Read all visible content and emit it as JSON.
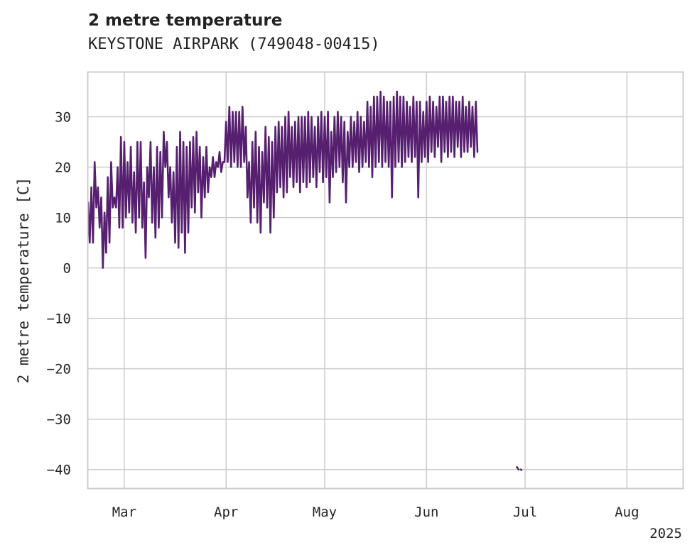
{
  "chart_data": {
    "type": "line",
    "title": "2 metre temperature",
    "subtitle": "KEYSTONE AIRPARK (749048-00415)",
    "ylabel": "2 metre temperature [C]",
    "xlabel": "",
    "year_label": "2025",
    "xlim": [
      "2025-02-18",
      "2025-08-18"
    ],
    "ylim": [
      -43.7,
      38.8
    ],
    "x_ticks": [
      {
        "date": "2025-03-01",
        "label": "Mar"
      },
      {
        "date": "2025-04-01",
        "label": "Apr"
      },
      {
        "date": "2025-05-01",
        "label": "May"
      },
      {
        "date": "2025-06-01",
        "label": "Jun"
      },
      {
        "date": "2025-07-01",
        "label": "Jul"
      },
      {
        "date": "2025-08-01",
        "label": "Aug"
      }
    ],
    "y_ticks": [
      30,
      20,
      10,
      0,
      -10,
      -20,
      -30,
      -40
    ],
    "grid": true,
    "line_color": "#561f6f",
    "series": [
      {
        "name": "",
        "points": [
          [
            "2025-02-18",
            13
          ],
          [
            "2025-02-18 12:00",
            5
          ],
          [
            "2025-02-19",
            16
          ],
          [
            "2025-02-19 12:00",
            5
          ],
          [
            "2025-02-20",
            21
          ],
          [
            "2025-02-20 12:00",
            12
          ],
          [
            "2025-02-21",
            16
          ],
          [
            "2025-02-21 12:00",
            8
          ],
          [
            "2025-02-22",
            14
          ],
          [
            "2025-02-22 12:00",
            0
          ],
          [
            "2025-02-23",
            11
          ],
          [
            "2025-02-23 12:00",
            3
          ],
          [
            "2025-02-24",
            18
          ],
          [
            "2025-02-24 12:00",
            5
          ],
          [
            "2025-02-25",
            21
          ],
          [
            "2025-02-25 12:00",
            12
          ],
          [
            "2025-02-26",
            14
          ],
          [
            "2025-02-26 12:00",
            12
          ],
          [
            "2025-02-27",
            20
          ],
          [
            "2025-02-27 12:00",
            8
          ],
          [
            "2025-02-28",
            26
          ],
          [
            "2025-02-28 12:00",
            8
          ],
          [
            "2025-03-01",
            25
          ],
          [
            "2025-03-01 12:00",
            10
          ],
          [
            "2025-03-02",
            21
          ],
          [
            "2025-03-02 12:00",
            11
          ],
          [
            "2025-03-03",
            24
          ],
          [
            "2025-03-03 12:00",
            9
          ],
          [
            "2025-03-04",
            19
          ],
          [
            "2025-03-04 12:00",
            7
          ],
          [
            "2025-03-05",
            25
          ],
          [
            "2025-03-05 12:00",
            10
          ],
          [
            "2025-03-06",
            25
          ],
          [
            "2025-03-06 12:00",
            8
          ],
          [
            "2025-03-07",
            17
          ],
          [
            "2025-03-07 12:00",
            2
          ],
          [
            "2025-03-08",
            20
          ],
          [
            "2025-03-08 12:00",
            14
          ],
          [
            "2025-03-09",
            25
          ],
          [
            "2025-03-09 12:00",
            9
          ],
          [
            "2025-03-10",
            20
          ],
          [
            "2025-03-10 12:00",
            6
          ],
          [
            "2025-03-11",
            24
          ],
          [
            "2025-03-11 12:00",
            8
          ],
          [
            "2025-03-12",
            23
          ],
          [
            "2025-03-12 12:00",
            10
          ],
          [
            "2025-03-13",
            27
          ],
          [
            "2025-03-13 12:00",
            20
          ],
          [
            "2025-03-14",
            25
          ],
          [
            "2025-03-14 12:00",
            14
          ],
          [
            "2025-03-15",
            20
          ],
          [
            "2025-03-15 12:00",
            9
          ],
          [
            "2025-03-16",
            19
          ],
          [
            "2025-03-16 12:00",
            5
          ],
          [
            "2025-03-17",
            24
          ],
          [
            "2025-03-17 12:00",
            4
          ],
          [
            "2025-03-18",
            27
          ],
          [
            "2025-03-18 12:00",
            7
          ],
          [
            "2025-03-19",
            25
          ],
          [
            "2025-03-19 12:00",
            3
          ],
          [
            "2025-03-20",
            24
          ],
          [
            "2025-03-20 12:00",
            7
          ],
          [
            "2025-03-21",
            25
          ],
          [
            "2025-03-21 12:00",
            12
          ],
          [
            "2025-03-22",
            26
          ],
          [
            "2025-03-22 12:00",
            11
          ],
          [
            "2025-03-23",
            27
          ],
          [
            "2025-03-23 12:00",
            15
          ],
          [
            "2025-03-24",
            24
          ],
          [
            "2025-03-24 12:00",
            10
          ],
          [
            "2025-03-25",
            22
          ],
          [
            "2025-03-25 12:00",
            14
          ],
          [
            "2025-03-26",
            24
          ],
          [
            "2025-03-26 12:00",
            15
          ],
          [
            "2025-03-27",
            20
          ],
          [
            "2025-03-27 12:00",
            18
          ],
          [
            "2025-03-28",
            22
          ],
          [
            "2025-03-28 12:00",
            18
          ],
          [
            "2025-03-29",
            21
          ],
          [
            "2025-03-29 12:00",
            20
          ],
          [
            "2025-03-30",
            23
          ],
          [
            "2025-03-30 12:00",
            19
          ],
          [
            "2025-03-31",
            21
          ],
          [
            "2025-03-31 12:00",
            21
          ],
          [
            "2025-04-01",
            29
          ],
          [
            "2025-04-01 12:00",
            21
          ],
          [
            "2025-04-02",
            32
          ],
          [
            "2025-04-02 12:00",
            20
          ],
          [
            "2025-04-03",
            31
          ],
          [
            "2025-04-03 12:00",
            21
          ],
          [
            "2025-04-04",
            31
          ],
          [
            "2025-04-04 12:00",
            20
          ],
          [
            "2025-04-05",
            31
          ],
          [
            "2025-04-05 12:00",
            20
          ],
          [
            "2025-04-06",
            32
          ],
          [
            "2025-04-06 12:00",
            21
          ],
          [
            "2025-04-07",
            28
          ],
          [
            "2025-04-07 12:00",
            14
          ],
          [
            "2025-04-08",
            21
          ],
          [
            "2025-04-08 12:00",
            9
          ],
          [
            "2025-04-09",
            25
          ],
          [
            "2025-04-09 12:00",
            12
          ],
          [
            "2025-04-10",
            27
          ],
          [
            "2025-04-10 12:00",
            9
          ],
          [
            "2025-04-11",
            24
          ],
          [
            "2025-04-11 12:00",
            7
          ],
          [
            "2025-04-12",
            23
          ],
          [
            "2025-04-12 12:00",
            13
          ],
          [
            "2025-04-13",
            28
          ],
          [
            "2025-04-13 12:00",
            12
          ],
          [
            "2025-04-14",
            26
          ],
          [
            "2025-04-14 12:00",
            7
          ],
          [
            "2025-04-15",
            25
          ],
          [
            "2025-04-15 12:00",
            10
          ],
          [
            "2025-04-16",
            28
          ],
          [
            "2025-04-16 12:00",
            15
          ],
          [
            "2025-04-17",
            29
          ],
          [
            "2025-04-17 12:00",
            16
          ],
          [
            "2025-04-18",
            28
          ],
          [
            "2025-04-18 12:00",
            14
          ],
          [
            "2025-04-19",
            30
          ],
          [
            "2025-04-19 12:00",
            15
          ],
          [
            "2025-04-20",
            31
          ],
          [
            "2025-04-20 12:00",
            18
          ],
          [
            "2025-04-21",
            28
          ],
          [
            "2025-04-21 12:00",
            16
          ],
          [
            "2025-04-22",
            29
          ],
          [
            "2025-04-22 12:00",
            17
          ],
          [
            "2025-04-23",
            30
          ],
          [
            "2025-04-23 12:00",
            15
          ],
          [
            "2025-04-24",
            30
          ],
          [
            "2025-04-24 12:00",
            17
          ],
          [
            "2025-04-25",
            30
          ],
          [
            "2025-04-25 12:00",
            16
          ],
          [
            "2025-04-26",
            31
          ],
          [
            "2025-04-26 12:00",
            17
          ],
          [
            "2025-04-27",
            30
          ],
          [
            "2025-04-27 12:00",
            18
          ],
          [
            "2025-04-28",
            28
          ],
          [
            "2025-04-28 12:00",
            16
          ],
          [
            "2025-04-29",
            30
          ],
          [
            "2025-04-29 12:00",
            19
          ],
          [
            "2025-04-30",
            31
          ],
          [
            "2025-04-30 12:00",
            17
          ],
          [
            "2025-05-01",
            30
          ],
          [
            "2025-05-01 12:00",
            18
          ],
          [
            "2025-05-02",
            31
          ],
          [
            "2025-05-02 12:00",
            13
          ],
          [
            "2025-05-03",
            27
          ],
          [
            "2025-05-03 12:00",
            18
          ],
          [
            "2025-05-04",
            30
          ],
          [
            "2025-05-04 12:00",
            19
          ],
          [
            "2025-05-05",
            31
          ],
          [
            "2025-05-05 12:00",
            20
          ],
          [
            "2025-05-06",
            30
          ],
          [
            "2025-05-06 12:00",
            17
          ],
          [
            "2025-05-07",
            29
          ],
          [
            "2025-05-07 12:00",
            13
          ],
          [
            "2025-05-08",
            27
          ],
          [
            "2025-05-08 12:00",
            20
          ],
          [
            "2025-05-09",
            30
          ],
          [
            "2025-05-09 12:00",
            20
          ],
          [
            "2025-05-10",
            29
          ],
          [
            "2025-05-10 12:00",
            21
          ],
          [
            "2025-05-11",
            31
          ],
          [
            "2025-05-11 12:00",
            19
          ],
          [
            "2025-05-12",
            30
          ],
          [
            "2025-05-12 12:00",
            20
          ],
          [
            "2025-05-13",
            29
          ],
          [
            "2025-05-13 12:00",
            21
          ],
          [
            "2025-05-14",
            33
          ],
          [
            "2025-05-14 12:00",
            20
          ],
          [
            "2025-05-15",
            32
          ],
          [
            "2025-05-15 12:00",
            18
          ],
          [
            "2025-05-16",
            34
          ],
          [
            "2025-05-16 12:00",
            20
          ],
          [
            "2025-05-17",
            34
          ],
          [
            "2025-05-17 12:00",
            21
          ],
          [
            "2025-05-18",
            35
          ],
          [
            "2025-05-18 12:00",
            20
          ],
          [
            "2025-05-19",
            34
          ],
          [
            "2025-05-19 12:00",
            21
          ],
          [
            "2025-05-20",
            33
          ],
          [
            "2025-05-20 12:00",
            20
          ],
          [
            "2025-05-21",
            33
          ],
          [
            "2025-05-21 12:00",
            14
          ],
          [
            "2025-05-22",
            34
          ],
          [
            "2025-05-22 12:00",
            20
          ],
          [
            "2025-05-23",
            35
          ],
          [
            "2025-05-23 12:00",
            21
          ],
          [
            "2025-05-24",
            34
          ],
          [
            "2025-05-24 12:00",
            20
          ],
          [
            "2025-05-25",
            34
          ],
          [
            "2025-05-25 12:00",
            21
          ],
          [
            "2025-05-26",
            33
          ],
          [
            "2025-05-26 12:00",
            22
          ],
          [
            "2025-05-27",
            32
          ],
          [
            "2025-05-27 12:00",
            21
          ],
          [
            "2025-05-28",
            34
          ],
          [
            "2025-05-28 12:00",
            22
          ],
          [
            "2025-05-29",
            33
          ],
          [
            "2025-05-29 12:00",
            14
          ],
          [
            "2025-05-30",
            33
          ],
          [
            "2025-05-30 12:00",
            21
          ],
          [
            "2025-05-31",
            31
          ],
          [
            "2025-05-31 12:00",
            22
          ],
          [
            "2025-06-01",
            33
          ],
          [
            "2025-06-01 12:00",
            21
          ],
          [
            "2025-06-02",
            34
          ],
          [
            "2025-06-02 12:00",
            23
          ],
          [
            "2025-06-03",
            33
          ],
          [
            "2025-06-03 12:00",
            22
          ],
          [
            "2025-06-04",
            32
          ],
          [
            "2025-06-04 12:00",
            24
          ],
          [
            "2025-06-05",
            34
          ],
          [
            "2025-06-05 12:00",
            21
          ],
          [
            "2025-06-06",
            34
          ],
          [
            "2025-06-06 12:00",
            23
          ],
          [
            "2025-06-07",
            33
          ],
          [
            "2025-06-07 12:00",
            22
          ],
          [
            "2025-06-08",
            34
          ],
          [
            "2025-06-08 12:00",
            23
          ],
          [
            "2025-06-09",
            34
          ],
          [
            "2025-06-09 12:00",
            22
          ],
          [
            "2025-06-10",
            33
          ],
          [
            "2025-06-10 12:00",
            24
          ],
          [
            "2025-06-11",
            33
          ],
          [
            "2025-06-11 12:00",
            22
          ],
          [
            "2025-06-12",
            34
          ],
          [
            "2025-06-12 12:00",
            23
          ],
          [
            "2025-06-13",
            32
          ],
          [
            "2025-06-13 12:00",
            23
          ],
          [
            "2025-06-14",
            33
          ],
          [
            "2025-06-14 12:00",
            24
          ],
          [
            "2025-06-15",
            32
          ],
          [
            "2025-06-15 12:00",
            22
          ],
          [
            "2025-06-16",
            33
          ],
          [
            "2025-06-16 12:00",
            23
          ]
        ]
      },
      {
        "name": "",
        "points": [
          [
            "2025-06-28 12:00",
            -39.5
          ],
          [
            "2025-06-29",
            -40
          ]
        ]
      },
      {
        "name": "",
        "points": [
          [
            "2025-06-29 16:00",
            -40
          ],
          [
            "2025-06-29 22:00",
            -40.1
          ]
        ]
      }
    ]
  }
}
